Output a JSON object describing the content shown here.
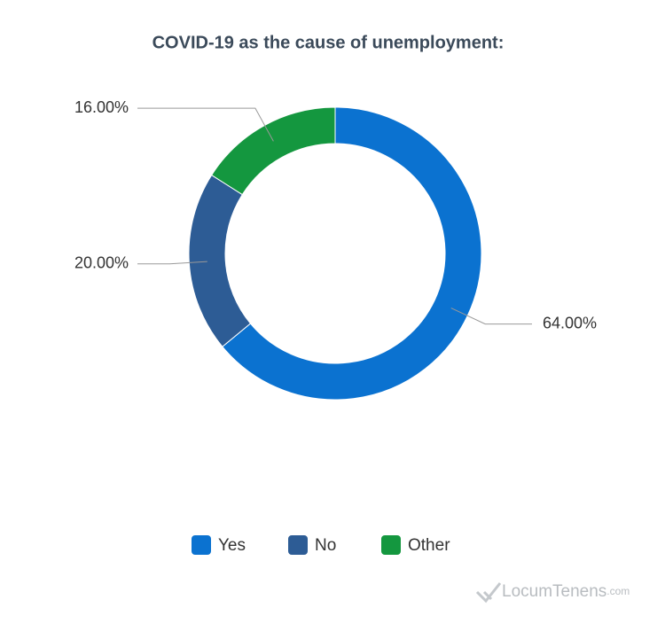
{
  "chart_data": {
    "type": "pie",
    "title": "COVID-19 as the cause of unemployment:",
    "categories": [
      "Yes",
      "No",
      "Other"
    ],
    "values": [
      64,
      20,
      16
    ],
    "value_labels": [
      "64.00%",
      "20.00%",
      "16.00%"
    ],
    "colors": [
      "#0b72d0",
      "#2d5c95",
      "#14973f"
    ],
    "donut": true,
    "legend": "bottom"
  },
  "branding": {
    "name": "LocumTenens",
    "suffix": ".com"
  }
}
